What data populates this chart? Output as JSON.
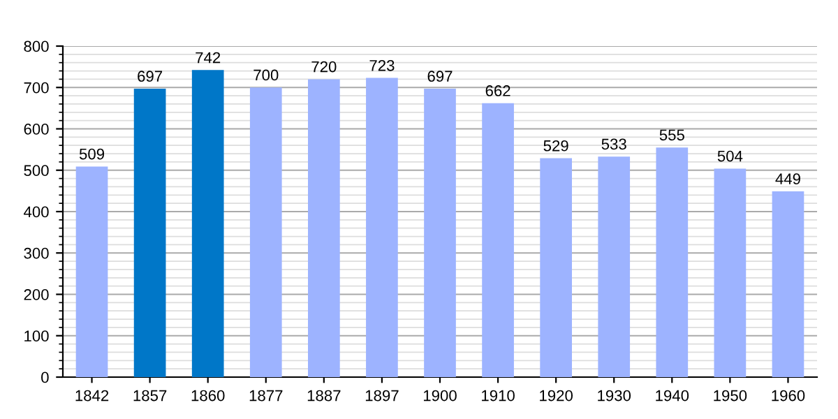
{
  "chart_data": {
    "type": "bar",
    "categories": [
      "1842",
      "1857",
      "1860",
      "1877",
      "1887",
      "1897",
      "1900",
      "1910",
      "1920",
      "1930",
      "1940",
      "1950",
      "1960"
    ],
    "values": [
      509,
      697,
      742,
      700,
      720,
      723,
      697,
      662,
      529,
      533,
      555,
      504,
      449
    ],
    "colors": [
      "#9db3ff",
      "#0077c8",
      "#0077c8",
      "#9db3ff",
      "#9db3ff",
      "#9db3ff",
      "#9db3ff",
      "#9db3ff",
      "#9db3ff",
      "#9db3ff",
      "#9db3ff",
      "#9db3ff",
      "#9db3ff"
    ],
    "ylim": [
      0,
      800
    ],
    "yticks": [
      0,
      100,
      200,
      300,
      400,
      500,
      600,
      700,
      800
    ],
    "grid": "y",
    "data_labels": true
  }
}
